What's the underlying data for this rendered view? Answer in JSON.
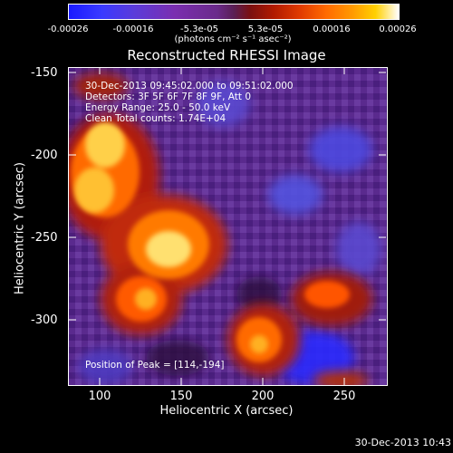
{
  "colorbar": {
    "ticks": [
      "-0.00026",
      "-0.00016",
      "-5.3e-05",
      "5.3e-05",
      "0.00016",
      "0.00026"
    ],
    "units": "(photons cm⁻² s⁻¹ asec⁻²)"
  },
  "title": "Reconstructed RHESSI Image",
  "annotations": {
    "time_range": "30-Dec-2013 09:45:02.000 to 09:51:02.000",
    "detectors": "Detectors: 3F 5F 6F 7F 8F 9F, Att 0",
    "energy": "Energy Range: 25.0 - 50.0 keV",
    "clean": "Clean    Total counts: 1.74E+04",
    "peak": "Position of Peak = [114,-194]"
  },
  "axes": {
    "xlabel": "Heliocentric X (arcsec)",
    "ylabel": "Heliocentric Y (arcsec)",
    "xticks": [
      "100",
      "150",
      "200",
      "250"
    ],
    "yticks": [
      "-150",
      "-200",
      "-250",
      "-300"
    ]
  },
  "footer": "30-Dec-2013 10:43"
}
